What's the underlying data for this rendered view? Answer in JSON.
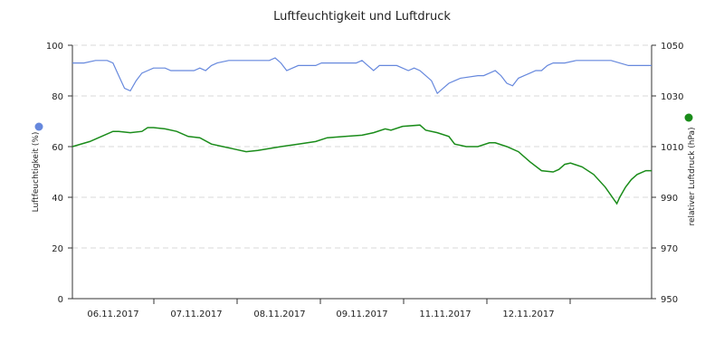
{
  "chart_data": {
    "type": "line",
    "title": "Luftfeuchtigkeit und Luftdruck",
    "x_tick_labels": [
      "06.11.2017",
      "07.11.2017",
      "08.11.2017",
      "09.11.2017",
      "11.11.2017",
      "12.11.2017"
    ],
    "y_left": {
      "label": "Luftfeuchtigkeit (%)",
      "range": [
        0,
        100
      ],
      "ticks": [
        0,
        20,
        40,
        60,
        80,
        100
      ],
      "color": "#6688dd"
    },
    "y_right": {
      "label": "relativer Luftdruck (hPa)",
      "range": [
        950,
        1050
      ],
      "ticks": [
        950,
        970,
        990,
        1010,
        1030,
        1050
      ],
      "color": "#1a8c1a"
    },
    "grid": true,
    "series": [
      {
        "axis": "left",
        "color": "#6688dd",
        "values": [
          93,
          93,
          94,
          94,
          93,
          88,
          83,
          82,
          86,
          89,
          90,
          91,
          91,
          91,
          90,
          90,
          90,
          90,
          91,
          90,
          92,
          93,
          94,
          94,
          94,
          94,
          95,
          93,
          90,
          91,
          92,
          92,
          92,
          93,
          93,
          93,
          93,
          94,
          92,
          90,
          92,
          92,
          92,
          90,
          91,
          90,
          88,
          86,
          81,
          83,
          85,
          86,
          87,
          88,
          88,
          89,
          90,
          88,
          85,
          84,
          87,
          88,
          89,
          90,
          90,
          92,
          93,
          93,
          94,
          94,
          94,
          94,
          94,
          94,
          94,
          92,
          92
        ],
        "x": [
          0,
          0.02,
          0.04,
          0.06,
          0.07,
          0.08,
          0.09,
          0.1,
          0.11,
          0.12,
          0.13,
          0.14,
          0.15,
          0.16,
          0.17,
          0.18,
          0.2,
          0.21,
          0.22,
          0.23,
          0.24,
          0.25,
          0.27,
          0.3,
          0.32,
          0.34,
          0.35,
          0.36,
          0.37,
          0.38,
          0.39,
          0.4,
          0.42,
          0.43,
          0.45,
          0.47,
          0.49,
          0.5,
          0.51,
          0.52,
          0.53,
          0.54,
          0.56,
          0.58,
          0.59,
          0.6,
          0.61,
          0.62,
          0.63,
          0.64,
          0.65,
          0.66,
          0.67,
          0.7,
          0.71,
          0.72,
          0.73,
          0.74,
          0.75,
          0.76,
          0.77,
          0.78,
          0.79,
          0.8,
          0.81,
          0.82,
          0.83,
          0.85,
          0.87,
          0.88,
          0.89,
          0.9,
          0.91,
          0.92,
          0.93,
          0.96,
          1.0
        ]
      },
      {
        "axis": "right",
        "color": "#1a8c1a",
        "values": [
          1010,
          1012,
          1014,
          1016,
          1016,
          1015.5,
          1016,
          1017.5,
          1017.5,
          1017,
          1016,
          1014,
          1013.5,
          1011,
          1010,
          1009,
          1008,
          1008.5,
          1010,
          1011,
          1012,
          1013.5,
          1014,
          1014.5,
          1015.5,
          1017,
          1016.5,
          1018,
          1018.5,
          1018.5,
          1016.5,
          1015.5,
          1014,
          1011,
          1010,
          1010,
          1011.5,
          1011.5,
          1010,
          1008,
          1004,
          1000.5,
          1000,
          1001,
          1003,
          1003.5,
          1002,
          999,
          994,
          987.5,
          990,
          994,
          997,
          999,
          1000.5,
          1000.5
        ],
        "x": [
          0,
          0.03,
          0.05,
          0.07,
          0.08,
          0.1,
          0.12,
          0.13,
          0.14,
          0.16,
          0.18,
          0.2,
          0.22,
          0.24,
          0.26,
          0.28,
          0.3,
          0.32,
          0.36,
          0.39,
          0.42,
          0.44,
          0.47,
          0.5,
          0.52,
          0.54,
          0.55,
          0.57,
          0.6,
          0.6,
          0.61,
          0.63,
          0.65,
          0.66,
          0.68,
          0.7,
          0.72,
          0.73,
          0.75,
          0.77,
          0.79,
          0.81,
          0.83,
          0.84,
          0.85,
          0.86,
          0.88,
          0.9,
          0.92,
          0.94,
          0.945,
          0.955,
          0.965,
          0.975,
          0.99,
          1.0
        ]
      }
    ]
  },
  "legend": {
    "left_marker_color": "#6688dd",
    "right_marker_color": "#1a8c1a"
  }
}
